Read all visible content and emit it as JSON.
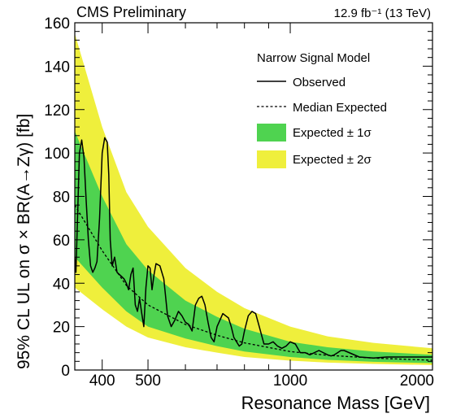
{
  "chart_data": {
    "type": "line",
    "header_left": "CMS Preliminary",
    "header_right": "12.9 fb⁻¹ (13 TeV)",
    "xlabel": "Resonance Mass [GeV]",
    "ylabel": "95% CL UL on σ × BR(A→Zγ) [fb]",
    "x_scale": "log",
    "xlim": [
      350,
      2000
    ],
    "ylim": [
      0,
      160
    ],
    "x_ticks": [
      {
        "value": 400,
        "label": "400"
      },
      {
        "value": 500,
        "label": "500"
      },
      {
        "value": 1000,
        "label": "1000"
      },
      {
        "value": 2000,
        "label": "2000"
      }
    ],
    "y_ticks": [
      {
        "value": 0,
        "label": "0"
      },
      {
        "value": 20,
        "label": "20"
      },
      {
        "value": 40,
        "label": "40"
      },
      {
        "value": 60,
        "label": "60"
      },
      {
        "value": 80,
        "label": "80"
      },
      {
        "value": 100,
        "label": "100"
      },
      {
        "value": 120,
        "label": "120"
      },
      {
        "value": 140,
        "label": "140"
      },
      {
        "value": 160,
        "label": "160"
      }
    ],
    "legend": {
      "title": "Narrow Signal Model",
      "placement": "top-right",
      "entries": [
        {
          "label": "Observed",
          "style": "solid-line"
        },
        {
          "label": "Median Expected",
          "style": "dashed-line"
        },
        {
          "label": "Expected ± 1σ",
          "style": "box",
          "color": "#4fd350"
        },
        {
          "label": "Expected ± 2σ",
          "style": "box",
          "color": "#efef3c"
        }
      ]
    },
    "colors": {
      "band_1sigma": "#4fd350",
      "band_2sigma": "#efef3c",
      "line": "#000000"
    },
    "expected_median": {
      "x": [
        350,
        400,
        450,
        500,
        600,
        700,
        800,
        1000,
        1200,
        1500,
        2000
      ],
      "y": [
        76,
        55,
        39,
        30,
        21,
        16,
        12.5,
        8.5,
        6.8,
        5.5,
        4.5
      ]
    },
    "band_1sigma": {
      "x": [
        350,
        400,
        450,
        500,
        600,
        700,
        800,
        1000,
        1200,
        1500,
        2000
      ],
      "low": [
        52,
        38,
        27,
        20,
        14.5,
        11,
        8.5,
        6,
        4.7,
        3.8,
        3.2
      ],
      "high": [
        110,
        80,
        58,
        46,
        32,
        24.5,
        19,
        13,
        10.5,
        8.5,
        7
      ]
    },
    "band_2sigma": {
      "x": [
        350,
        400,
        450,
        500,
        600,
        700,
        800,
        1000,
        1200,
        1500,
        2000
      ],
      "low": [
        38,
        28,
        20,
        15,
        10.5,
        8,
        6,
        4.3,
        3.4,
        2.8,
        2.3
      ],
      "high": [
        155,
        112,
        82,
        66,
        47,
        36,
        28.5,
        20,
        15.5,
        12.5,
        10
      ]
    },
    "observed": {
      "x": [
        350,
        352,
        355,
        358,
        362,
        366,
        370,
        374,
        378,
        382,
        386,
        390,
        395,
        400,
        405,
        410,
        413,
        416,
        420,
        425,
        430,
        435,
        440,
        445,
        450,
        455,
        460,
        465,
        470,
        475,
        480,
        485,
        490,
        495,
        500,
        505,
        510,
        515,
        520,
        530,
        540,
        550,
        560,
        570,
        580,
        590,
        600,
        610,
        620,
        630,
        640,
        650,
        660,
        670,
        680,
        690,
        700,
        710,
        720,
        730,
        740,
        750,
        760,
        770,
        780,
        790,
        800,
        815,
        830,
        845,
        860,
        880,
        900,
        920,
        940,
        960,
        980,
        1000,
        1025,
        1050,
        1075,
        1100,
        1150,
        1200,
        1220,
        1240,
        1260,
        1280,
        1300,
        1400,
        1500,
        1600,
        1700,
        1800,
        2000
      ],
      "y": [
        52,
        45,
        73,
        100,
        106,
        98,
        78,
        60,
        48,
        45,
        47,
        50,
        70,
        100,
        107,
        105,
        90,
        60,
        48,
        52,
        45,
        44,
        43,
        42,
        40,
        37,
        44,
        47,
        30,
        27,
        33,
        26,
        20,
        38,
        48,
        47,
        37,
        44,
        49,
        48,
        42,
        25,
        20,
        23,
        27,
        25,
        22,
        21,
        18,
        30,
        33,
        34,
        30,
        22,
        15,
        13,
        20,
        23,
        26,
        25,
        24,
        20,
        15,
        13,
        11,
        12,
        18,
        25,
        27,
        26,
        20,
        12,
        12,
        13,
        11,
        10,
        11,
        13,
        12,
        8,
        8,
        7,
        9,
        7,
        6.5,
        7,
        8,
        9,
        9,
        6,
        5.5,
        6,
        6,
        6,
        6
      ]
    }
  }
}
